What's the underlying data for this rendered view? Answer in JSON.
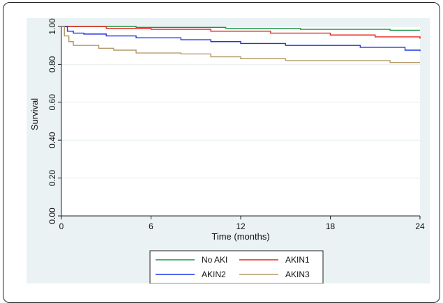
{
  "chart_data": {
    "type": "line",
    "title": "",
    "xlabel": "Time (months)",
    "ylabel": "Survival",
    "xlim": [
      0,
      24
    ],
    "ylim": [
      0,
      1
    ],
    "x_ticks": [
      0,
      6,
      12,
      18,
      24
    ],
    "y_ticks": [
      0,
      0.2,
      0.4,
      0.6,
      0.8,
      1.0
    ],
    "x_tick_labels": [
      "0",
      "6",
      "12",
      "18",
      "24"
    ],
    "y_tick_labels": [
      "0.00",
      "0.20",
      "0.40",
      "0.60",
      "0.80",
      "1.00"
    ],
    "grid": true,
    "legend_position": "bottom",
    "series": [
      {
        "name": "No AKI",
        "color": "#1a9641",
        "step": true,
        "points": [
          [
            0,
            1.0
          ],
          [
            5,
            0.995
          ],
          [
            11,
            0.99
          ],
          [
            16,
            0.985
          ],
          [
            22,
            0.98
          ],
          [
            24,
            0.98
          ]
        ]
      },
      {
        "name": "AKIN1",
        "color": "#e8231d",
        "step": true,
        "points": [
          [
            0,
            1.0
          ],
          [
            3,
            0.99
          ],
          [
            6,
            0.985
          ],
          [
            10,
            0.975
          ],
          [
            14,
            0.965
          ],
          [
            18,
            0.955
          ],
          [
            21,
            0.945
          ],
          [
            24,
            0.935
          ]
        ]
      },
      {
        "name": "AKIN2",
        "color": "#1f33e6",
        "step": true,
        "points": [
          [
            0,
            1.0
          ],
          [
            0.4,
            0.975
          ],
          [
            0.8,
            0.965
          ],
          [
            1.5,
            0.96
          ],
          [
            3,
            0.95
          ],
          [
            5,
            0.94
          ],
          [
            8,
            0.93
          ],
          [
            10,
            0.92
          ],
          [
            12,
            0.91
          ],
          [
            15,
            0.9
          ],
          [
            20,
            0.89
          ],
          [
            23,
            0.875
          ],
          [
            24,
            0.87
          ]
        ]
      },
      {
        "name": "AKIN3",
        "color": "#b2996a",
        "step": true,
        "points": [
          [
            0,
            1.0
          ],
          [
            0.2,
            0.95
          ],
          [
            0.5,
            0.92
          ],
          [
            0.8,
            0.9
          ],
          [
            2.5,
            0.885
          ],
          [
            3.5,
            0.875
          ],
          [
            5,
            0.86
          ],
          [
            8,
            0.855
          ],
          [
            10,
            0.84
          ],
          [
            12,
            0.83
          ],
          [
            15,
            0.82
          ],
          [
            22,
            0.81
          ],
          [
            24,
            0.81
          ]
        ]
      }
    ]
  }
}
